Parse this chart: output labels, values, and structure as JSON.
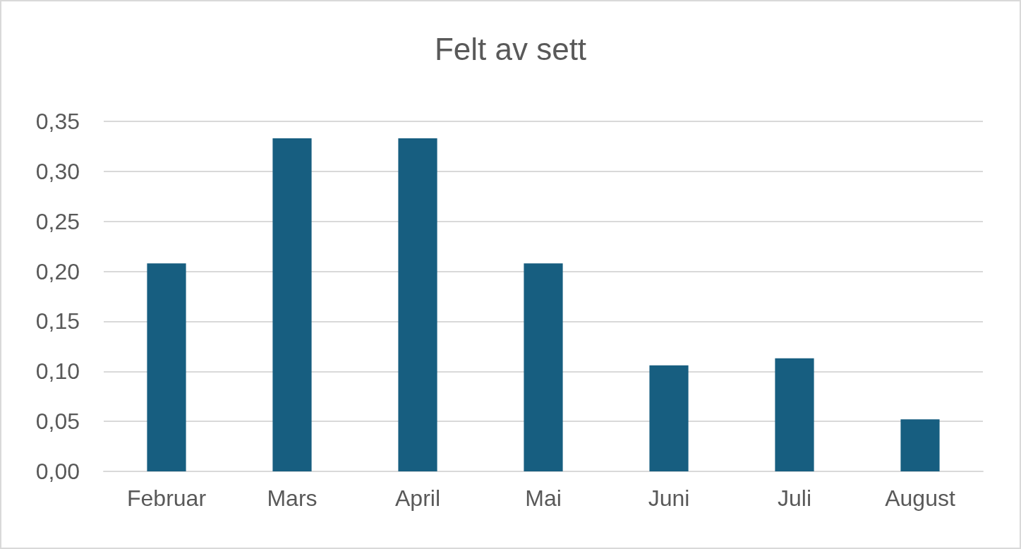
{
  "chart_data": {
    "type": "bar",
    "title": "Felt av sett",
    "categories": [
      "Februar",
      "Mars",
      "April",
      "Mai",
      "Juni",
      "Juli",
      "August"
    ],
    "values": [
      0.208,
      0.333,
      0.333,
      0.208,
      0.106,
      0.113,
      0.052
    ],
    "color": "#175e80",
    "ylim": [
      0,
      0.35
    ],
    "yticks": [
      {
        "value": 0,
        "label": "0,00"
      },
      {
        "value": 0.05,
        "label": "0,05"
      },
      {
        "value": 0.1,
        "label": "0,10"
      },
      {
        "value": 0.15,
        "label": "0,15"
      },
      {
        "value": 0.2,
        "label": "0,20"
      },
      {
        "value": 0.25,
        "label": "0,25"
      },
      {
        "value": 0.3,
        "label": "0,30"
      },
      {
        "value": 0.35,
        "label": "0,35"
      }
    ],
    "grid": "y"
  }
}
